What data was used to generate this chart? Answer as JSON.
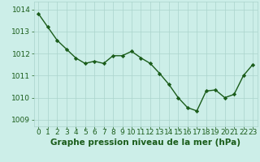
{
  "x": [
    0,
    1,
    2,
    3,
    4,
    5,
    6,
    7,
    8,
    9,
    10,
    11,
    12,
    13,
    14,
    15,
    16,
    17,
    18,
    19,
    20,
    21,
    22,
    23
  ],
  "y": [
    1013.8,
    1013.2,
    1012.6,
    1012.2,
    1011.8,
    1011.55,
    1011.65,
    1011.55,
    1011.9,
    1011.9,
    1012.1,
    1011.8,
    1011.55,
    1011.1,
    1010.6,
    1010.0,
    1009.55,
    1009.4,
    1010.3,
    1010.35,
    1010.0,
    1010.15,
    1011.0,
    1011.5
  ],
  "line_color": "#1a5c1a",
  "marker": "D",
  "markersize": 2.2,
  "linewidth": 1.0,
  "bg_color": "#cceee8",
  "grid_color": "#aad4cc",
  "xlabel": "Graphe pression niveau de la mer (hPa)",
  "xlabel_fontsize": 7.5,
  "xlabel_color": "#1a5c1a",
  "yticks": [
    1009,
    1010,
    1011,
    1012,
    1013,
    1014
  ],
  "xticks": [
    0,
    1,
    2,
    3,
    4,
    5,
    6,
    7,
    8,
    9,
    10,
    11,
    12,
    13,
    14,
    15,
    16,
    17,
    18,
    19,
    20,
    21,
    22,
    23
  ],
  "ylim": [
    1008.7,
    1014.35
  ],
  "xlim": [
    -0.5,
    23.5
  ],
  "tick_fontsize": 6.5,
  "tick_color": "#1a5c1a"
}
